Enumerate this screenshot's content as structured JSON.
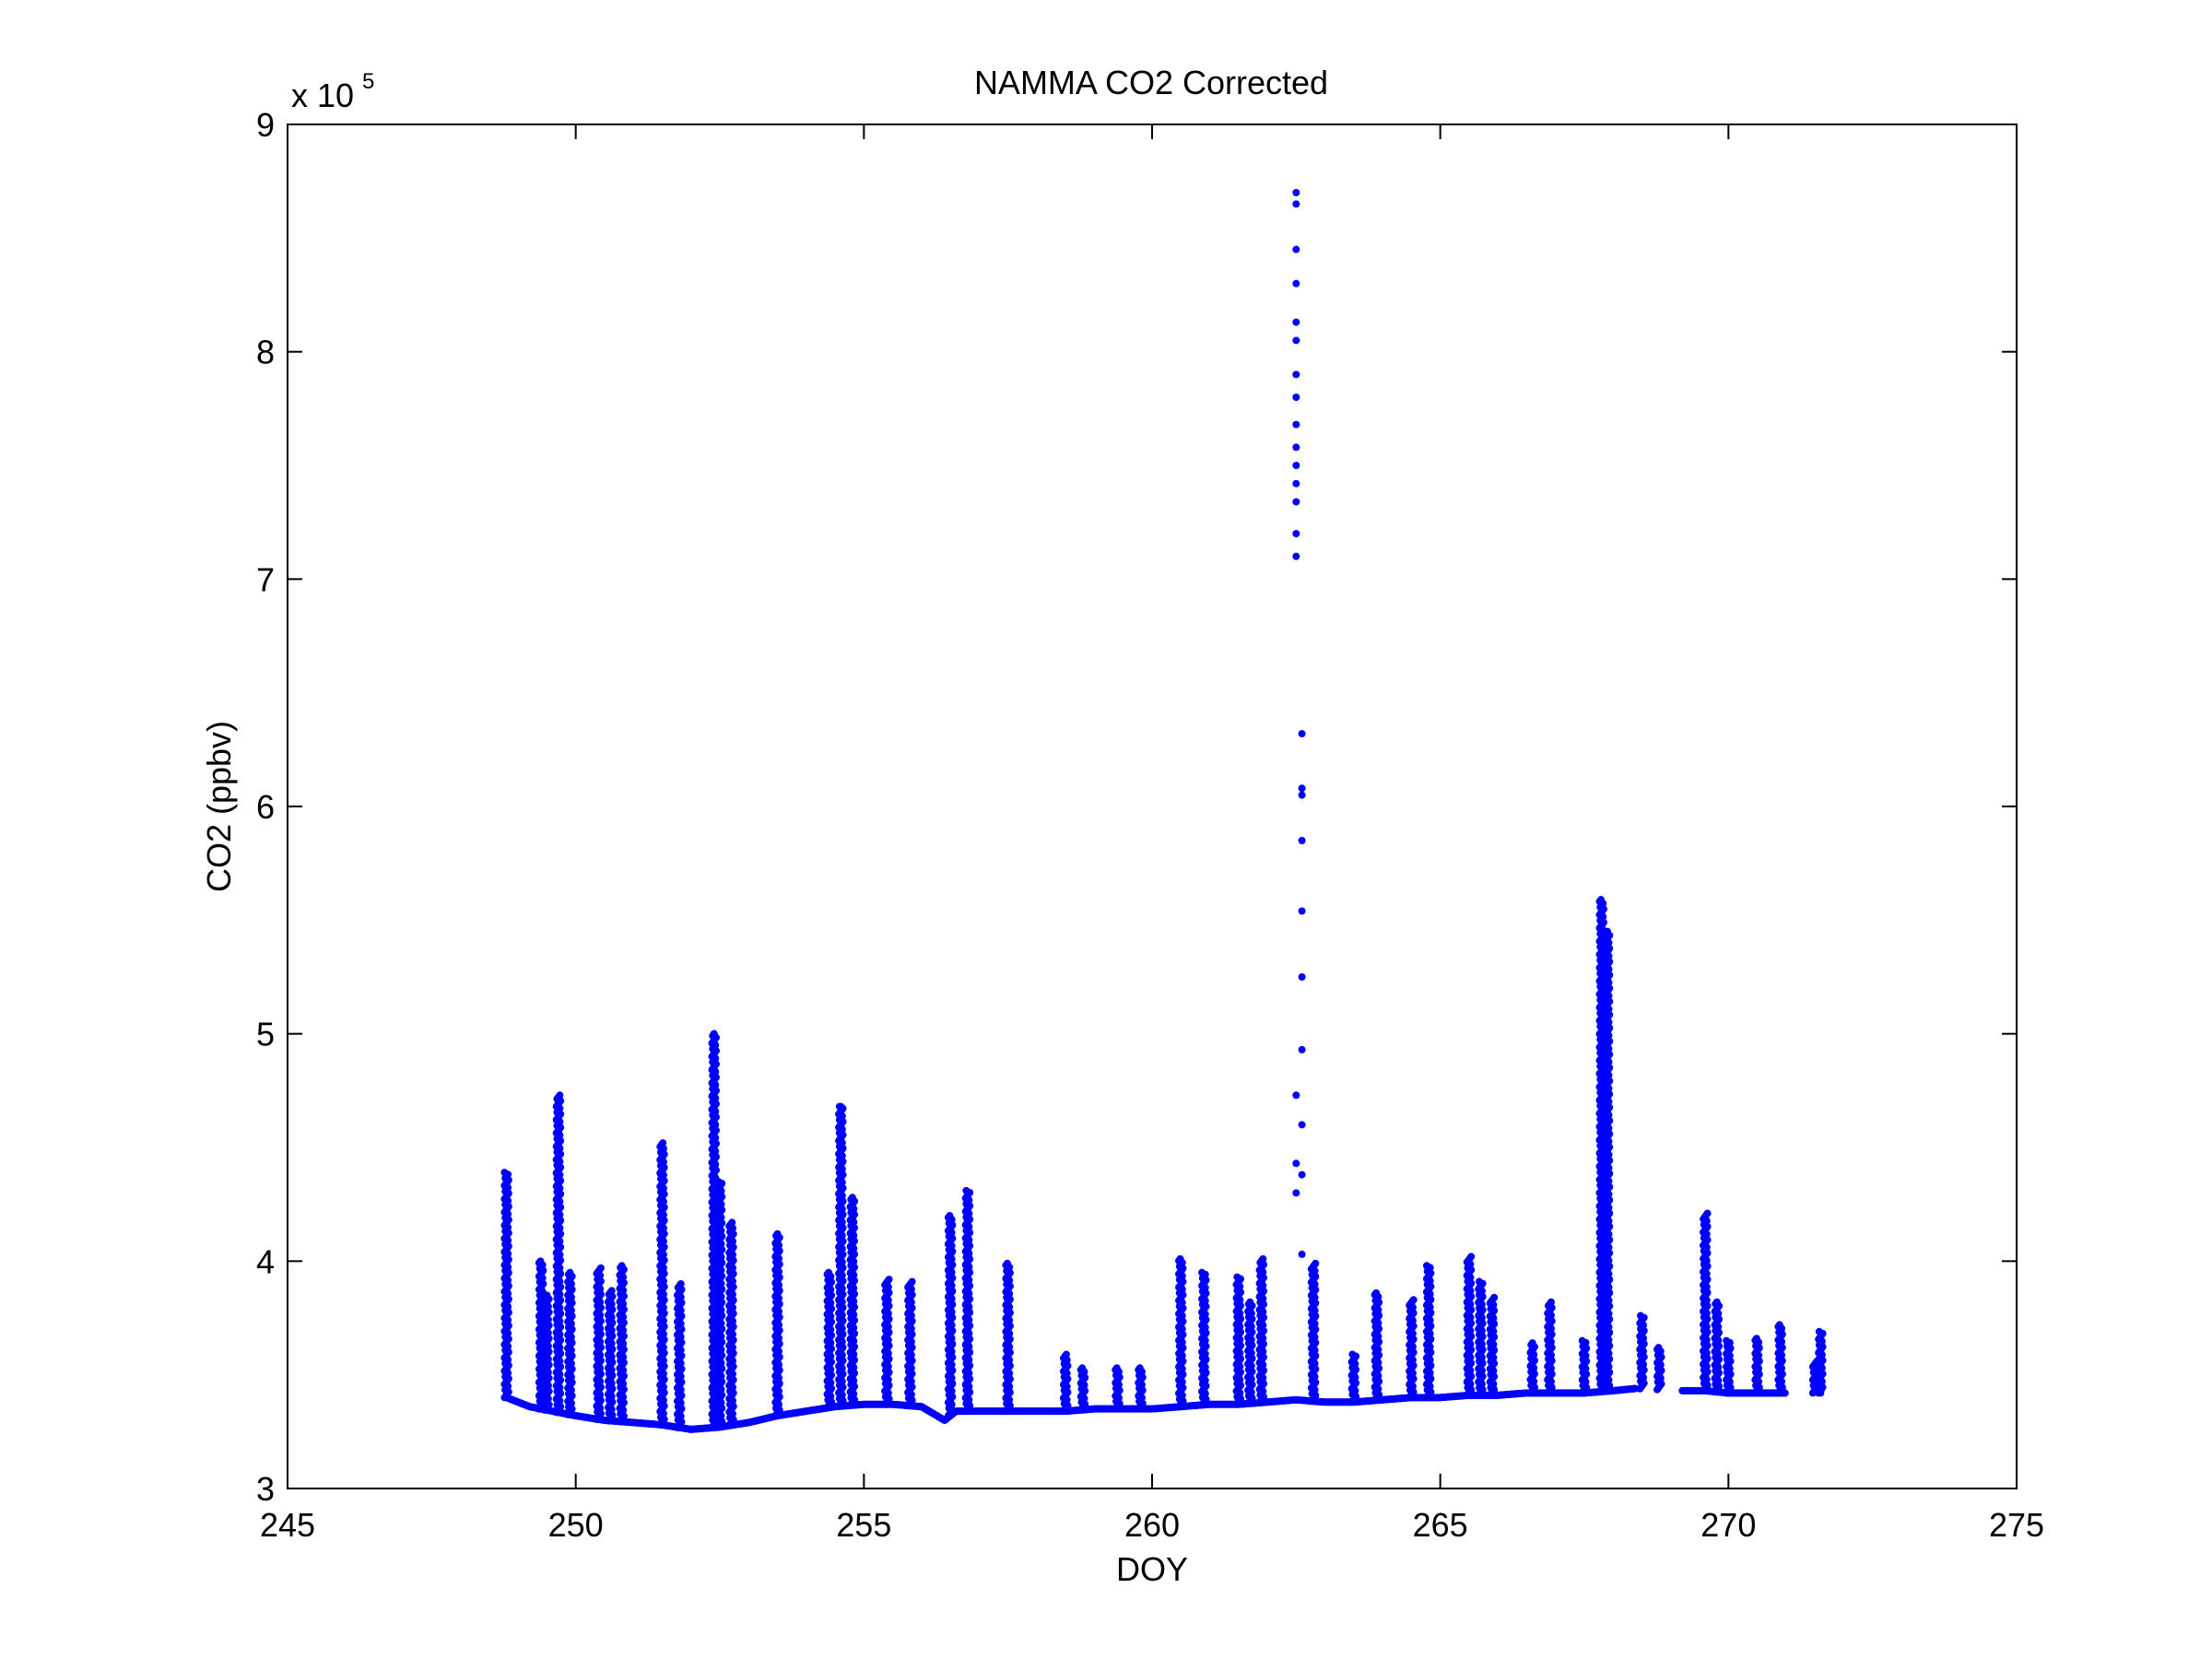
{
  "chart_data": {
    "type": "scatter",
    "title": "NAMMA CO2 Corrected",
    "xlabel": "DOY",
    "ylabel": "CO2 (ppbv)",
    "xlim": [
      245,
      275
    ],
    "ylim": [
      3,
      9
    ],
    "y_multiplier": {
      "base": "x 10",
      "exponent": "5"
    },
    "xticks": [
      245,
      250,
      255,
      260,
      265,
      270,
      275
    ],
    "yticks": [
      3,
      4,
      5,
      6,
      7,
      8,
      9
    ],
    "grid": false,
    "legend": "none",
    "marker_color": "#0000ff",
    "baseline": [
      [
        248.8,
        3.4
      ],
      [
        249.2,
        3.36
      ],
      [
        249.6,
        3.34
      ],
      [
        250.0,
        3.32
      ],
      [
        250.5,
        3.3
      ],
      [
        251.0,
        3.29
      ],
      [
        251.5,
        3.28
      ],
      [
        252.0,
        3.26
      ],
      [
        252.5,
        3.27
      ],
      [
        253.0,
        3.29
      ],
      [
        253.5,
        3.32
      ],
      [
        254.0,
        3.34
      ],
      [
        254.5,
        3.36
      ],
      [
        255.0,
        3.37
      ],
      [
        255.5,
        3.37
      ],
      [
        256.0,
        3.36
      ],
      [
        256.4,
        3.3
      ],
      [
        256.6,
        3.34
      ],
      [
        257.0,
        3.34
      ],
      [
        257.5,
        3.34
      ],
      [
        258.0,
        3.34
      ],
      [
        258.5,
        3.34
      ],
      [
        259.0,
        3.35
      ],
      [
        259.5,
        3.35
      ],
      [
        260.0,
        3.35
      ],
      [
        260.5,
        3.36
      ],
      [
        261.0,
        3.37
      ],
      [
        261.5,
        3.37
      ],
      [
        262.0,
        3.38
      ],
      [
        262.5,
        3.39
      ],
      [
        263.0,
        3.38
      ],
      [
        263.5,
        3.38
      ],
      [
        264.0,
        3.39
      ],
      [
        264.5,
        3.4
      ],
      [
        265.0,
        3.4
      ],
      [
        265.5,
        3.41
      ],
      [
        266.0,
        3.41
      ],
      [
        266.5,
        3.42
      ],
      [
        267.0,
        3.42
      ],
      [
        267.5,
        3.42
      ],
      [
        268.0,
        3.43
      ],
      [
        268.4,
        3.44
      ],
      [
        269.2,
        3.43
      ],
      [
        269.6,
        3.43
      ],
      [
        270.0,
        3.42
      ],
      [
        270.5,
        3.42
      ],
      [
        271.0,
        3.42
      ],
      [
        271.6,
        3.42
      ]
    ],
    "spikes": [
      [
        248.8,
        4.39
      ],
      [
        249.4,
        4.0
      ],
      [
        249.5,
        3.85
      ],
      [
        249.7,
        4.73
      ],
      [
        249.9,
        3.95
      ],
      [
        250.4,
        3.97
      ],
      [
        250.6,
        3.87
      ],
      [
        250.8,
        3.98
      ],
      [
        251.5,
        4.52
      ],
      [
        251.8,
        3.9
      ],
      [
        252.4,
        5.0
      ],
      [
        252.5,
        4.35
      ],
      [
        252.7,
        4.17
      ],
      [
        253.5,
        4.12
      ],
      [
        254.4,
        3.95
      ],
      [
        254.6,
        4.68
      ],
      [
        254.8,
        4.28
      ],
      [
        255.4,
        3.92
      ],
      [
        255.8,
        3.91
      ],
      [
        256.5,
        4.2
      ],
      [
        256.8,
        4.31
      ],
      [
        257.5,
        3.99
      ],
      [
        258.5,
        3.59
      ],
      [
        258.8,
        3.53
      ],
      [
        259.4,
        3.53
      ],
      [
        259.8,
        3.53
      ],
      [
        260.5,
        4.01
      ],
      [
        260.9,
        3.95
      ],
      [
        261.5,
        3.93
      ],
      [
        261.7,
        3.82
      ],
      [
        261.9,
        4.01
      ],
      [
        262.5,
        8.7
      ],
      [
        262.8,
        3.99
      ],
      [
        263.5,
        3.59
      ],
      [
        263.9,
        3.86
      ],
      [
        264.5,
        3.83
      ],
      [
        264.8,
        3.98
      ],
      [
        265.5,
        4.02
      ],
      [
        265.7,
        3.91
      ],
      [
        265.9,
        3.84
      ],
      [
        266.6,
        3.64
      ],
      [
        266.9,
        3.82
      ],
      [
        267.5,
        3.65
      ],
      [
        267.8,
        5.59
      ],
      [
        267.9,
        5.45
      ],
      [
        268.5,
        3.76
      ],
      [
        268.8,
        3.62
      ],
      [
        269.6,
        4.21
      ],
      [
        269.8,
        3.82
      ],
      [
        270.0,
        3.65
      ],
      [
        270.5,
        3.66
      ],
      [
        270.9,
        3.72
      ],
      [
        271.5,
        3.56
      ],
      [
        271.6,
        3.69
      ]
    ],
    "outliers": [
      [
        262.5,
        8.7
      ],
      [
        262.5,
        8.65
      ],
      [
        262.5,
        8.45
      ],
      [
        262.5,
        8.3
      ],
      [
        262.5,
        8.13
      ],
      [
        262.5,
        8.05
      ],
      [
        262.5,
        7.9
      ],
      [
        262.5,
        7.8
      ],
      [
        262.5,
        7.68
      ],
      [
        262.5,
        7.58
      ],
      [
        262.5,
        7.5
      ],
      [
        262.5,
        7.42
      ],
      [
        262.5,
        7.34
      ],
      [
        262.5,
        7.2
      ],
      [
        262.5,
        7.1
      ],
      [
        262.6,
        6.32
      ],
      [
        262.6,
        6.08
      ],
      [
        262.6,
        6.05
      ],
      [
        262.6,
        5.85
      ],
      [
        262.6,
        5.54
      ],
      [
        262.6,
        5.25
      ],
      [
        262.6,
        4.93
      ],
      [
        262.5,
        4.73
      ],
      [
        262.6,
        4.6
      ],
      [
        262.5,
        4.43
      ],
      [
        262.6,
        4.38
      ],
      [
        262.5,
        4.3
      ],
      [
        262.6,
        4.03
      ],
      [
        252.4,
        5.0
      ],
      [
        254.6,
        4.68
      ],
      [
        254.6,
        4.37
      ]
    ]
  }
}
